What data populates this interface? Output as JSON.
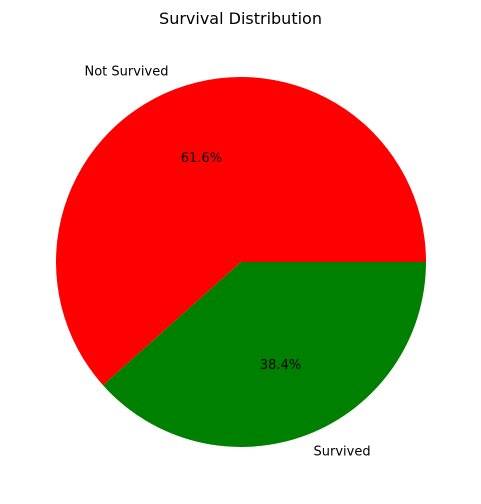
{
  "chart_data": {
    "type": "pie",
    "title": "Survival Distribution",
    "labels": [
      "Not Survived",
      "Survived"
    ],
    "values": [
      61.6,
      38.4
    ],
    "value_labels": [
      "61.6%",
      "38.4%"
    ],
    "colors": [
      "#ff0000",
      "#008000"
    ],
    "start_angle_deg": 0,
    "direction": "counterclockwise"
  }
}
